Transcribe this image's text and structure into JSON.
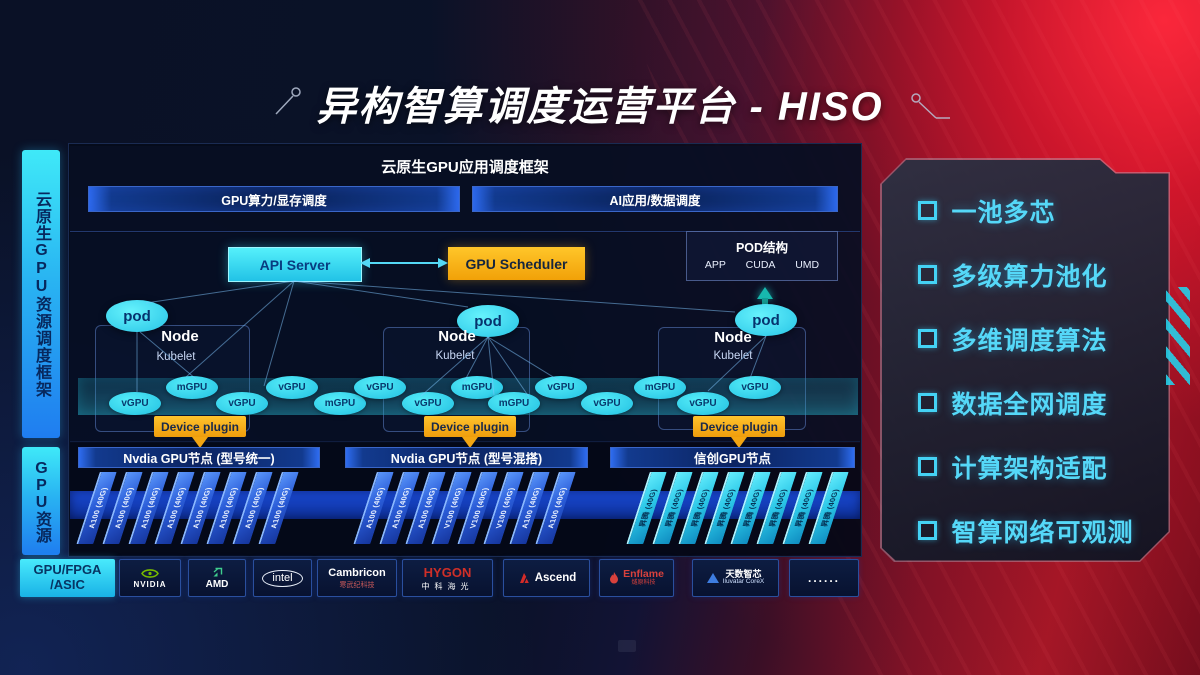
{
  "title": "异构智算调度运营平台 - HISO",
  "sidebar": {
    "top_label": "云原生GPU资源调度框架",
    "bottom_label": "GPU资源"
  },
  "scheduling_panel": {
    "title": "云原生GPU应用调度框架",
    "bars": [
      "GPU算力/显存调度",
      "AI应用/数据调度"
    ]
  },
  "control_plane": {
    "api_server": "API Server",
    "gpu_scheduler": "GPU Scheduler",
    "pod_structure": {
      "title": "POD结构",
      "items": [
        "APP",
        "CUDA",
        "UMD"
      ]
    }
  },
  "nodes": [
    {
      "pod": "pod",
      "label": "Node",
      "agent": "Kubelet",
      "device_plugin": "Device plugin"
    },
    {
      "pod": "pod",
      "label": "Node",
      "agent": "Kubelet",
      "device_plugin": "Device plugin"
    },
    {
      "pod": "pod",
      "label": "Node",
      "agent": "Kubelet",
      "device_plugin": "Device plugin"
    }
  ],
  "gpu_band": {
    "ellipses": [
      "vGPU",
      "mGPU",
      "vGPU",
      "vGPU",
      "mGPU",
      "vGPU",
      "vGPU",
      "mGPU",
      "mGPU",
      "vGPU",
      "vGPU",
      "mGPU",
      "vGPU",
      "vGPU"
    ]
  },
  "gpu_groups": [
    {
      "label": "Nvdia GPU节点 (型号统一)",
      "style": "blue",
      "cards": [
        "A100 (40G)",
        "A100 (40G)",
        "A100 (40G)",
        "A100 (40G)",
        "A100 (40G)",
        "A100 (40G)",
        "A100 (40G)",
        "A100 (40G)"
      ]
    },
    {
      "label": "Nvdia GPU节点 (型号混搭)",
      "style": "blue",
      "cards": [
        "A100 (40G)",
        "A100 (40G)",
        "A100 (40G)",
        "V100 (40G)",
        "V100 (40G)",
        "V100 (40G)",
        "A100 (40G)",
        "A100 (40G)"
      ]
    },
    {
      "label": "信创GPU节点",
      "style": "cyan",
      "cards": [
        "昇腾 (40G)",
        "昇腾 (40G)",
        "昇腾 (40G)",
        "昇腾 (40G)",
        "昇腾 (40G)",
        "昇腾 (40G)",
        "昇腾 (40G)",
        "昇腾 (40G)"
      ]
    }
  ],
  "hardware_row": {
    "label_line1": "GPU/FPGA",
    "label_line2": "/ASIC",
    "vendors": [
      {
        "type": "nvidia",
        "name": "NVIDIA"
      },
      {
        "type": "amd",
        "name": "AMD"
      },
      {
        "type": "intel",
        "name": "intel"
      },
      {
        "type": "cambricon",
        "name": "Cambricon",
        "sub": "寒武纪科技"
      },
      {
        "type": "hygon",
        "name": "HYGON",
        "sub": "中科海光"
      },
      {
        "type": "ascend",
        "name": "Ascend"
      },
      {
        "type": "enflame",
        "name": "Enflame",
        "sub": "燧原科技"
      },
      {
        "type": "iluvatar",
        "name": "天数智芯",
        "sub": "Iluvatar CoreX"
      },
      {
        "type": "dots",
        "name": "......"
      }
    ]
  },
  "features": [
    "一池多芯",
    "多级算力池化",
    "多维调度算法",
    "数据全网调度",
    "计算架构适配",
    "智算网络可观测"
  ],
  "colors": {
    "accent_cyan": "#3ce0f2",
    "accent_yellow": "#f5a81e",
    "accent_blue": "#2a6cf0",
    "accent_red": "#c8182a",
    "nvidia_green": "#76b900"
  }
}
